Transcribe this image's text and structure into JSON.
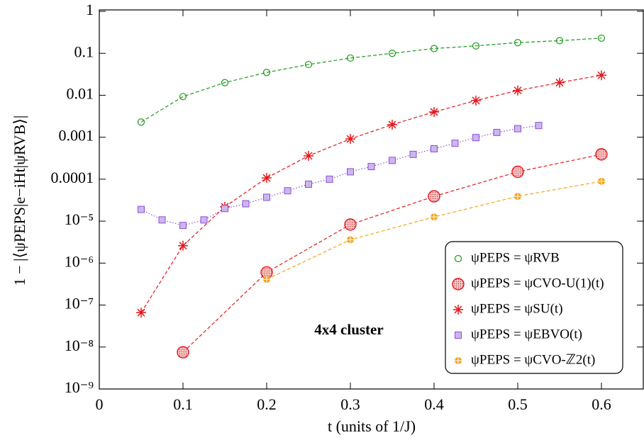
{
  "chart_data": {
    "type": "line",
    "log_scale_y": true,
    "x_label": "t (units of 1/J)",
    "y_label": "1 − |⟨ψPEPS|e−iHt|ψRVB⟩|",
    "annotation": "4x4 cluster",
    "xlim": [
      0,
      0.65
    ],
    "xticks": [
      0,
      0.1,
      0.2,
      0.3,
      0.4,
      0.5,
      0.6
    ],
    "ylim": [
      1e-09,
      1
    ],
    "yticks": [
      {
        "value": 1e-09,
        "label": "10⁻⁹"
      },
      {
        "value": 1e-08,
        "label": "10⁻⁸"
      },
      {
        "value": 1e-07,
        "label": "10⁻⁷"
      },
      {
        "value": 1e-06,
        "label": "10⁻⁶"
      },
      {
        "value": 1e-05,
        "label": "10⁻⁵"
      },
      0.0001,
      0.001,
      0.01,
      0.1,
      1
    ],
    "legend": "lower right",
    "series": [
      {
        "name": "ψPEPS = ψRVB",
        "color": "#1a9a1a",
        "marker": "circle",
        "line_style": "dashed",
        "x": [
          0.05,
          0.1,
          0.15,
          0.2,
          0.25,
          0.3,
          0.35,
          0.4,
          0.45,
          0.5,
          0.55,
          0.6
        ],
        "values": [
          0.0023,
          0.0093,
          0.02,
          0.035,
          0.054,
          0.077,
          0.1,
          0.13,
          0.15,
          0.18,
          0.2,
          0.23
        ]
      },
      {
        "name": "ψPEPS = ψCVO-U(1)(t)",
        "color": "#e8171c",
        "marker": "big-circle",
        "line_style": "dashed",
        "x": [
          0.1,
          0.2,
          0.3,
          0.4,
          0.5,
          0.6
        ],
        "values": [
          7.5e-09,
          6e-07,
          8.3e-06,
          3.9e-05,
          0.00015,
          0.00039
        ]
      },
      {
        "name": "ψPEPS = ψSU(t)",
        "color": "#e8171c",
        "marker": "star",
        "line_style": "dashed",
        "x": [
          0.05,
          0.1,
          0.15,
          0.2,
          0.25,
          0.3,
          0.35,
          0.4,
          0.45,
          0.5,
          0.55,
          0.6
        ],
        "values": [
          6.6e-08,
          2.6e-06,
          2.2e-05,
          0.000107,
          0.00036,
          0.00091,
          0.002,
          0.004,
          0.0075,
          0.013,
          0.02,
          0.03
        ]
      },
      {
        "name": "ψPEPS = ψEBVO(t)",
        "color": "#8a4fd6",
        "marker": "square",
        "line_style": "dotted",
        "x": [
          0.05,
          0.075,
          0.1,
          0.125,
          0.15,
          0.175,
          0.2,
          0.225,
          0.25,
          0.275,
          0.3,
          0.325,
          0.35,
          0.375,
          0.4,
          0.425,
          0.45,
          0.475,
          0.5,
          0.525
        ],
        "values": [
          1.9e-05,
          1.07e-05,
          7.9e-06,
          1.07e-05,
          2e-05,
          2.6e-05,
          3.7e-05,
          5.3e-05,
          7.6e-05,
          0.0001,
          0.00015,
          0.0002,
          0.00028,
          0.00039,
          0.00053,
          0.00072,
          0.00098,
          0.0013,
          0.0016,
          0.0019
        ]
      },
      {
        "name": "ψPEPS = ψCVO-ℤ2(t)",
        "color": "#f4a41c",
        "marker": "cross-circle",
        "line_style": "dashed",
        "x": [
          0.2,
          0.3,
          0.4,
          0.5,
          0.6
        ],
        "values": [
          4.1e-07,
          3.6e-06,
          1.26e-05,
          3.9e-05,
          8.9e-05
        ]
      }
    ]
  }
}
